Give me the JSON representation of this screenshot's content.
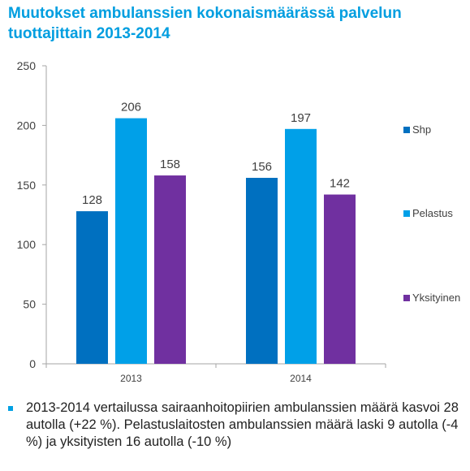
{
  "title_lines": [
    "Muutokset ambulanssien kokonaismäärässä palvelun",
    "tuottajittain 2013-2014"
  ],
  "chart_data": {
    "type": "bar",
    "categories": [
      "2013",
      "2014"
    ],
    "series": [
      {
        "name": "Shp",
        "values": [
          128,
          156
        ],
        "color": "#0070c0"
      },
      {
        "name": "Pelastus",
        "values": [
          206,
          197
        ],
        "color": "#00a0e8"
      },
      {
        "name": "Yksityinen",
        "values": [
          158,
          142
        ],
        "color": "#7030a0"
      }
    ],
    "ylim": [
      0,
      250
    ],
    "yticks": [
      0,
      50,
      100,
      150,
      200,
      250
    ],
    "grid": false,
    "legend": "right",
    "data_labels": true
  },
  "note": "2013-2014 vertailussa sairaanhoitopiirien ambulanssien määrä kasvoi 28 autolla (+22 %). Pelastuslaitosten ambulanssien määrä laski 9 autolla (-4 %) ja yksityisten 16 autolla (-10 %)"
}
